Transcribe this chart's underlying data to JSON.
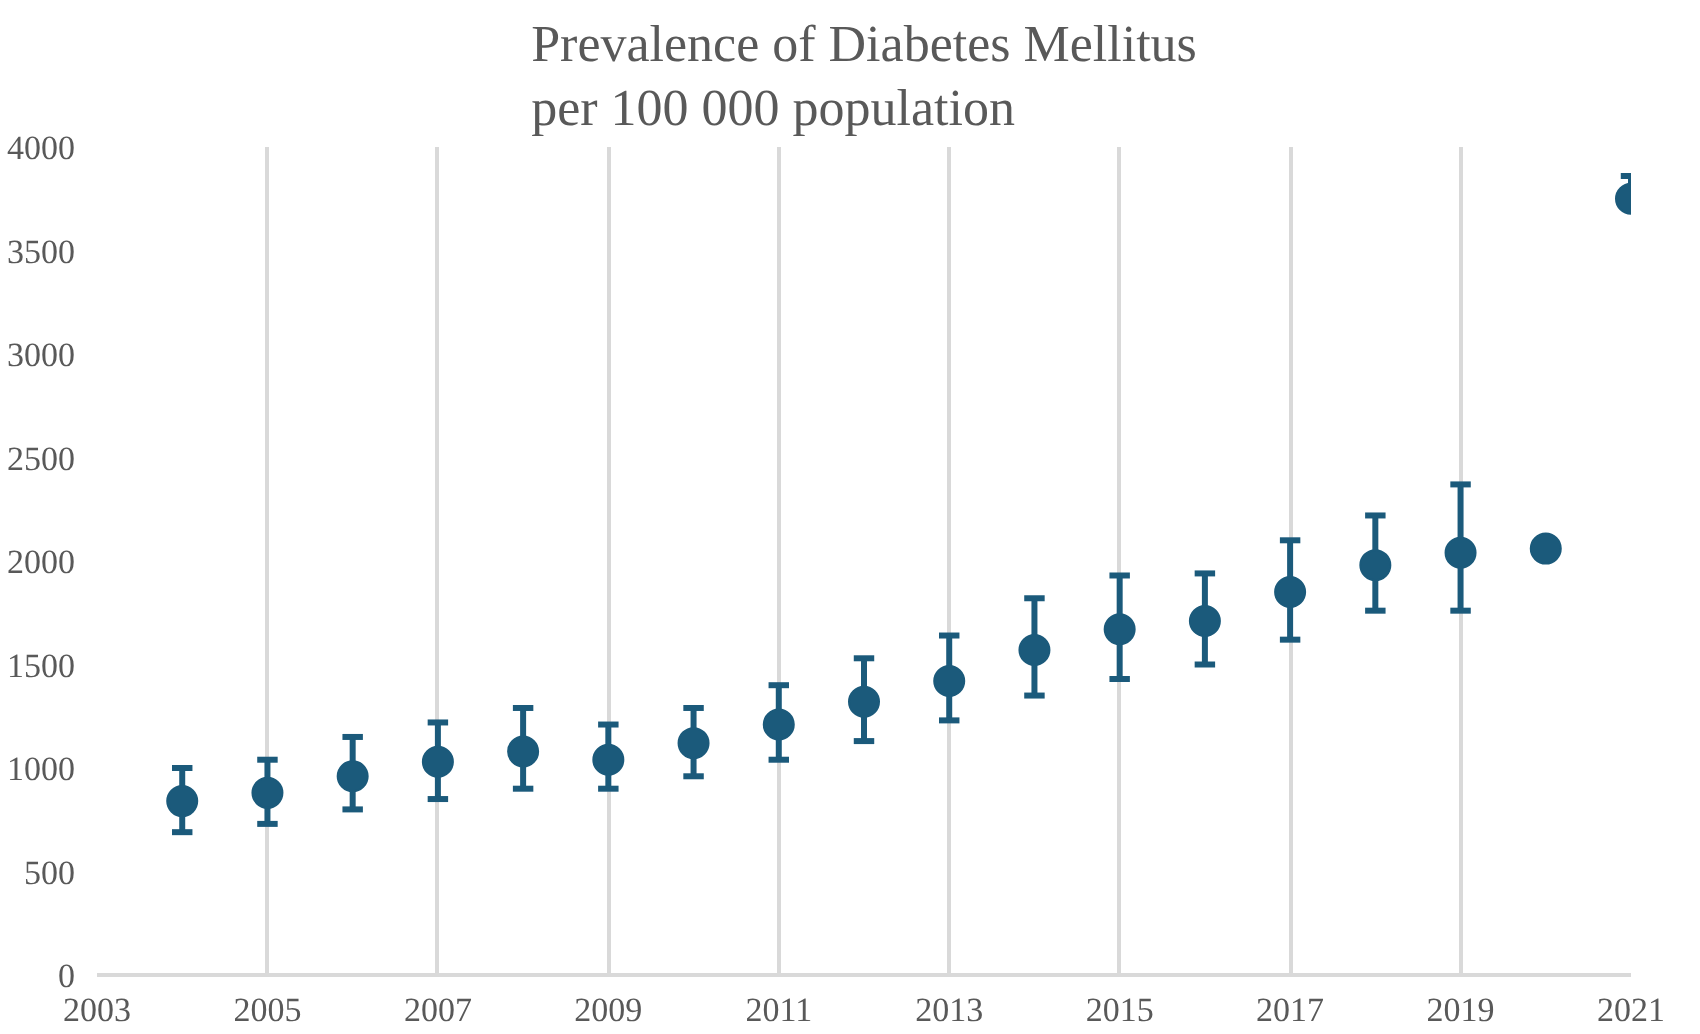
{
  "chart_data": {
    "type": "scatter",
    "title": "Prevalence of Diabetes Mellitus\nper 100 000 population",
    "x": [
      2004,
      2005,
      2006,
      2007,
      2008,
      2009,
      2010,
      2011,
      2012,
      2013,
      2014,
      2015,
      2016,
      2017,
      2018,
      2019,
      2020,
      2021
    ],
    "series": [
      {
        "color": "#1b5a7b",
        "values": [
          840,
          880,
          960,
          1030,
          1080,
          1040,
          1120,
          1210,
          1320,
          1420,
          1570,
          1670,
          1710,
          1850,
          1980,
          2040,
          2060,
          3750
        ],
        "errors": [
          [
            690,
            1000
          ],
          [
            730,
            1040
          ],
          [
            800,
            1150
          ],
          [
            850,
            1220
          ],
          [
            900,
            1290
          ],
          [
            900,
            1210
          ],
          [
            960,
            1290
          ],
          [
            1040,
            1400
          ],
          [
            1130,
            1530
          ],
          [
            1230,
            1640
          ],
          [
            1350,
            1820
          ],
          [
            1430,
            1930
          ],
          [
            1500,
            1940
          ],
          [
            1620,
            2100
          ],
          [
            1760,
            2220
          ],
          [
            1760,
            2370
          ],
          null,
          [
            3750,
            3860
          ]
        ]
      }
    ],
    "xlim": [
      2003,
      2021
    ],
    "xticks": [
      2003,
      2005,
      2007,
      2009,
      2011,
      2013,
      2015,
      2017,
      2019,
      2021
    ],
    "ylim": [
      0,
      4000
    ],
    "yticks": [
      0,
      500,
      1000,
      1500,
      2000,
      2500,
      3000,
      3500,
      4000
    ],
    "grid": "x",
    "marker": "circle"
  }
}
